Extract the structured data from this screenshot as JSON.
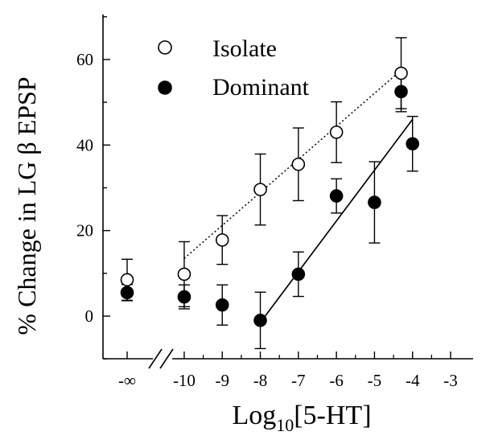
{
  "chart_data": {
    "type": "scatter",
    "title": "",
    "ylabel": "% Change in LG β EPSP",
    "xlabel": {
      "prefix": "Log",
      "subscript": "10",
      "suffix": "[5-HT]"
    },
    "ylim": [
      -10,
      70
    ],
    "yticks": [
      0,
      20,
      40,
      60
    ],
    "xlim": [
      -11.5,
      -3
    ],
    "xticks": [
      {
        "value": -11.5,
        "label": "-∞"
      },
      {
        "value": -10,
        "label": "-10"
      },
      {
        "value": -9,
        "label": "-9"
      },
      {
        "value": -8,
        "label": "-8"
      },
      {
        "value": -7,
        "label": "-7"
      },
      {
        "value": -6,
        "label": "-6"
      },
      {
        "value": -5,
        "label": "-5"
      },
      {
        "value": -4,
        "label": "-4"
      },
      {
        "value": -3,
        "label": "-3"
      }
    ],
    "axis_break": true,
    "legend_position": "top-left",
    "series": [
      {
        "name": "Isolate",
        "marker": "open-circle",
        "color": "#000000",
        "points": [
          {
            "x": -11.5,
            "y": 8.5,
            "err": 4.8
          },
          {
            "x": -10,
            "y": 9.8,
            "err": 7.6
          },
          {
            "x": -9,
            "y": 17.8,
            "err": 5.7
          },
          {
            "x": -8,
            "y": 29.6,
            "err": 8.3
          },
          {
            "x": -7,
            "y": 35.5,
            "err": 8.5
          },
          {
            "x": -6,
            "y": 43.0,
            "err": 7.1
          },
          {
            "x": -4.3,
            "y": 56.8,
            "err": 8.3
          }
        ],
        "fit": {
          "style": "dotted",
          "x": [
            -10,
            -4.3
          ],
          "y": [
            13.5,
            57.5
          ]
        }
      },
      {
        "name": "Dominant",
        "marker": "filled-circle",
        "color": "#000000",
        "points": [
          {
            "x": -11.5,
            "y": 5.5,
            "err": 1.9
          },
          {
            "x": -10,
            "y": 4.5,
            "err": 2.8
          },
          {
            "x": -9,
            "y": 2.6,
            "err": 4.7
          },
          {
            "x": -8,
            "y": -1.0,
            "err": 6.6
          },
          {
            "x": -7,
            "y": 9.8,
            "err": 5.2
          },
          {
            "x": -6,
            "y": 28.1,
            "err": 4.0
          },
          {
            "x": -5,
            "y": 26.6,
            "err": 9.5
          },
          {
            "x": -4.3,
            "y": 52.5,
            "err": 4.7
          },
          {
            "x": -4,
            "y": 40.3,
            "err": 6.4
          }
        ],
        "fit": {
          "style": "solid",
          "x": [
            -8,
            -4
          ],
          "y": [
            -1.5,
            46
          ]
        }
      }
    ]
  }
}
